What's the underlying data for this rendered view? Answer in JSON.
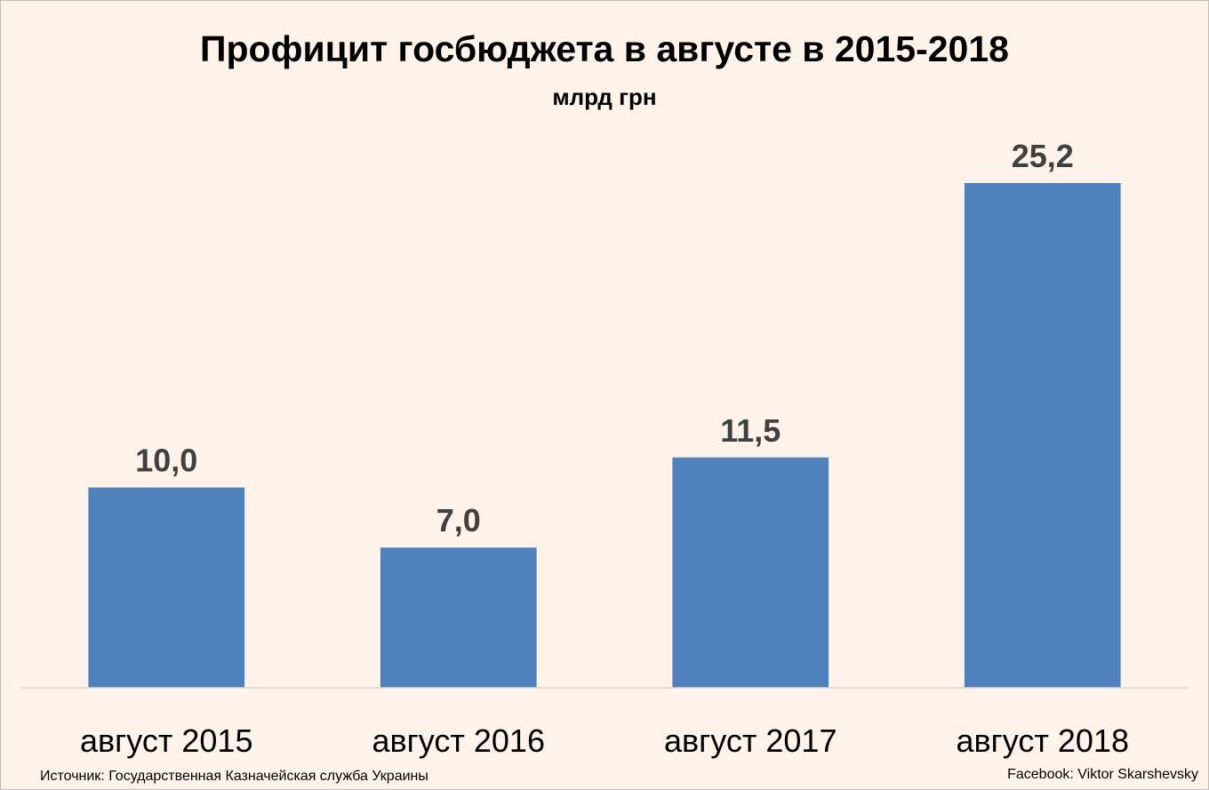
{
  "chart_data": {
    "type": "bar",
    "title": "Профицит госбюджета в августе в 2015-2018",
    "subtitle": "млрд грн",
    "categories": [
      "август 2015",
      "август 2016",
      "август 2017",
      "август 2018"
    ],
    "values": [
      10.0,
      7.0,
      11.5,
      25.2
    ],
    "data_labels": [
      "10,0",
      "7,0",
      "11,5",
      "25,2"
    ],
    "xlabel": "",
    "ylabel": "",
    "ylim": [
      0,
      25.2
    ],
    "grid": false,
    "legend": "none",
    "bar_color": "#4f81bd",
    "background_color": "#fdf3ea"
  },
  "footer": {
    "source": "Источник: Государственная Казначейская служба Украины",
    "credit": "Facebook: Viktor Skarshevsky"
  }
}
